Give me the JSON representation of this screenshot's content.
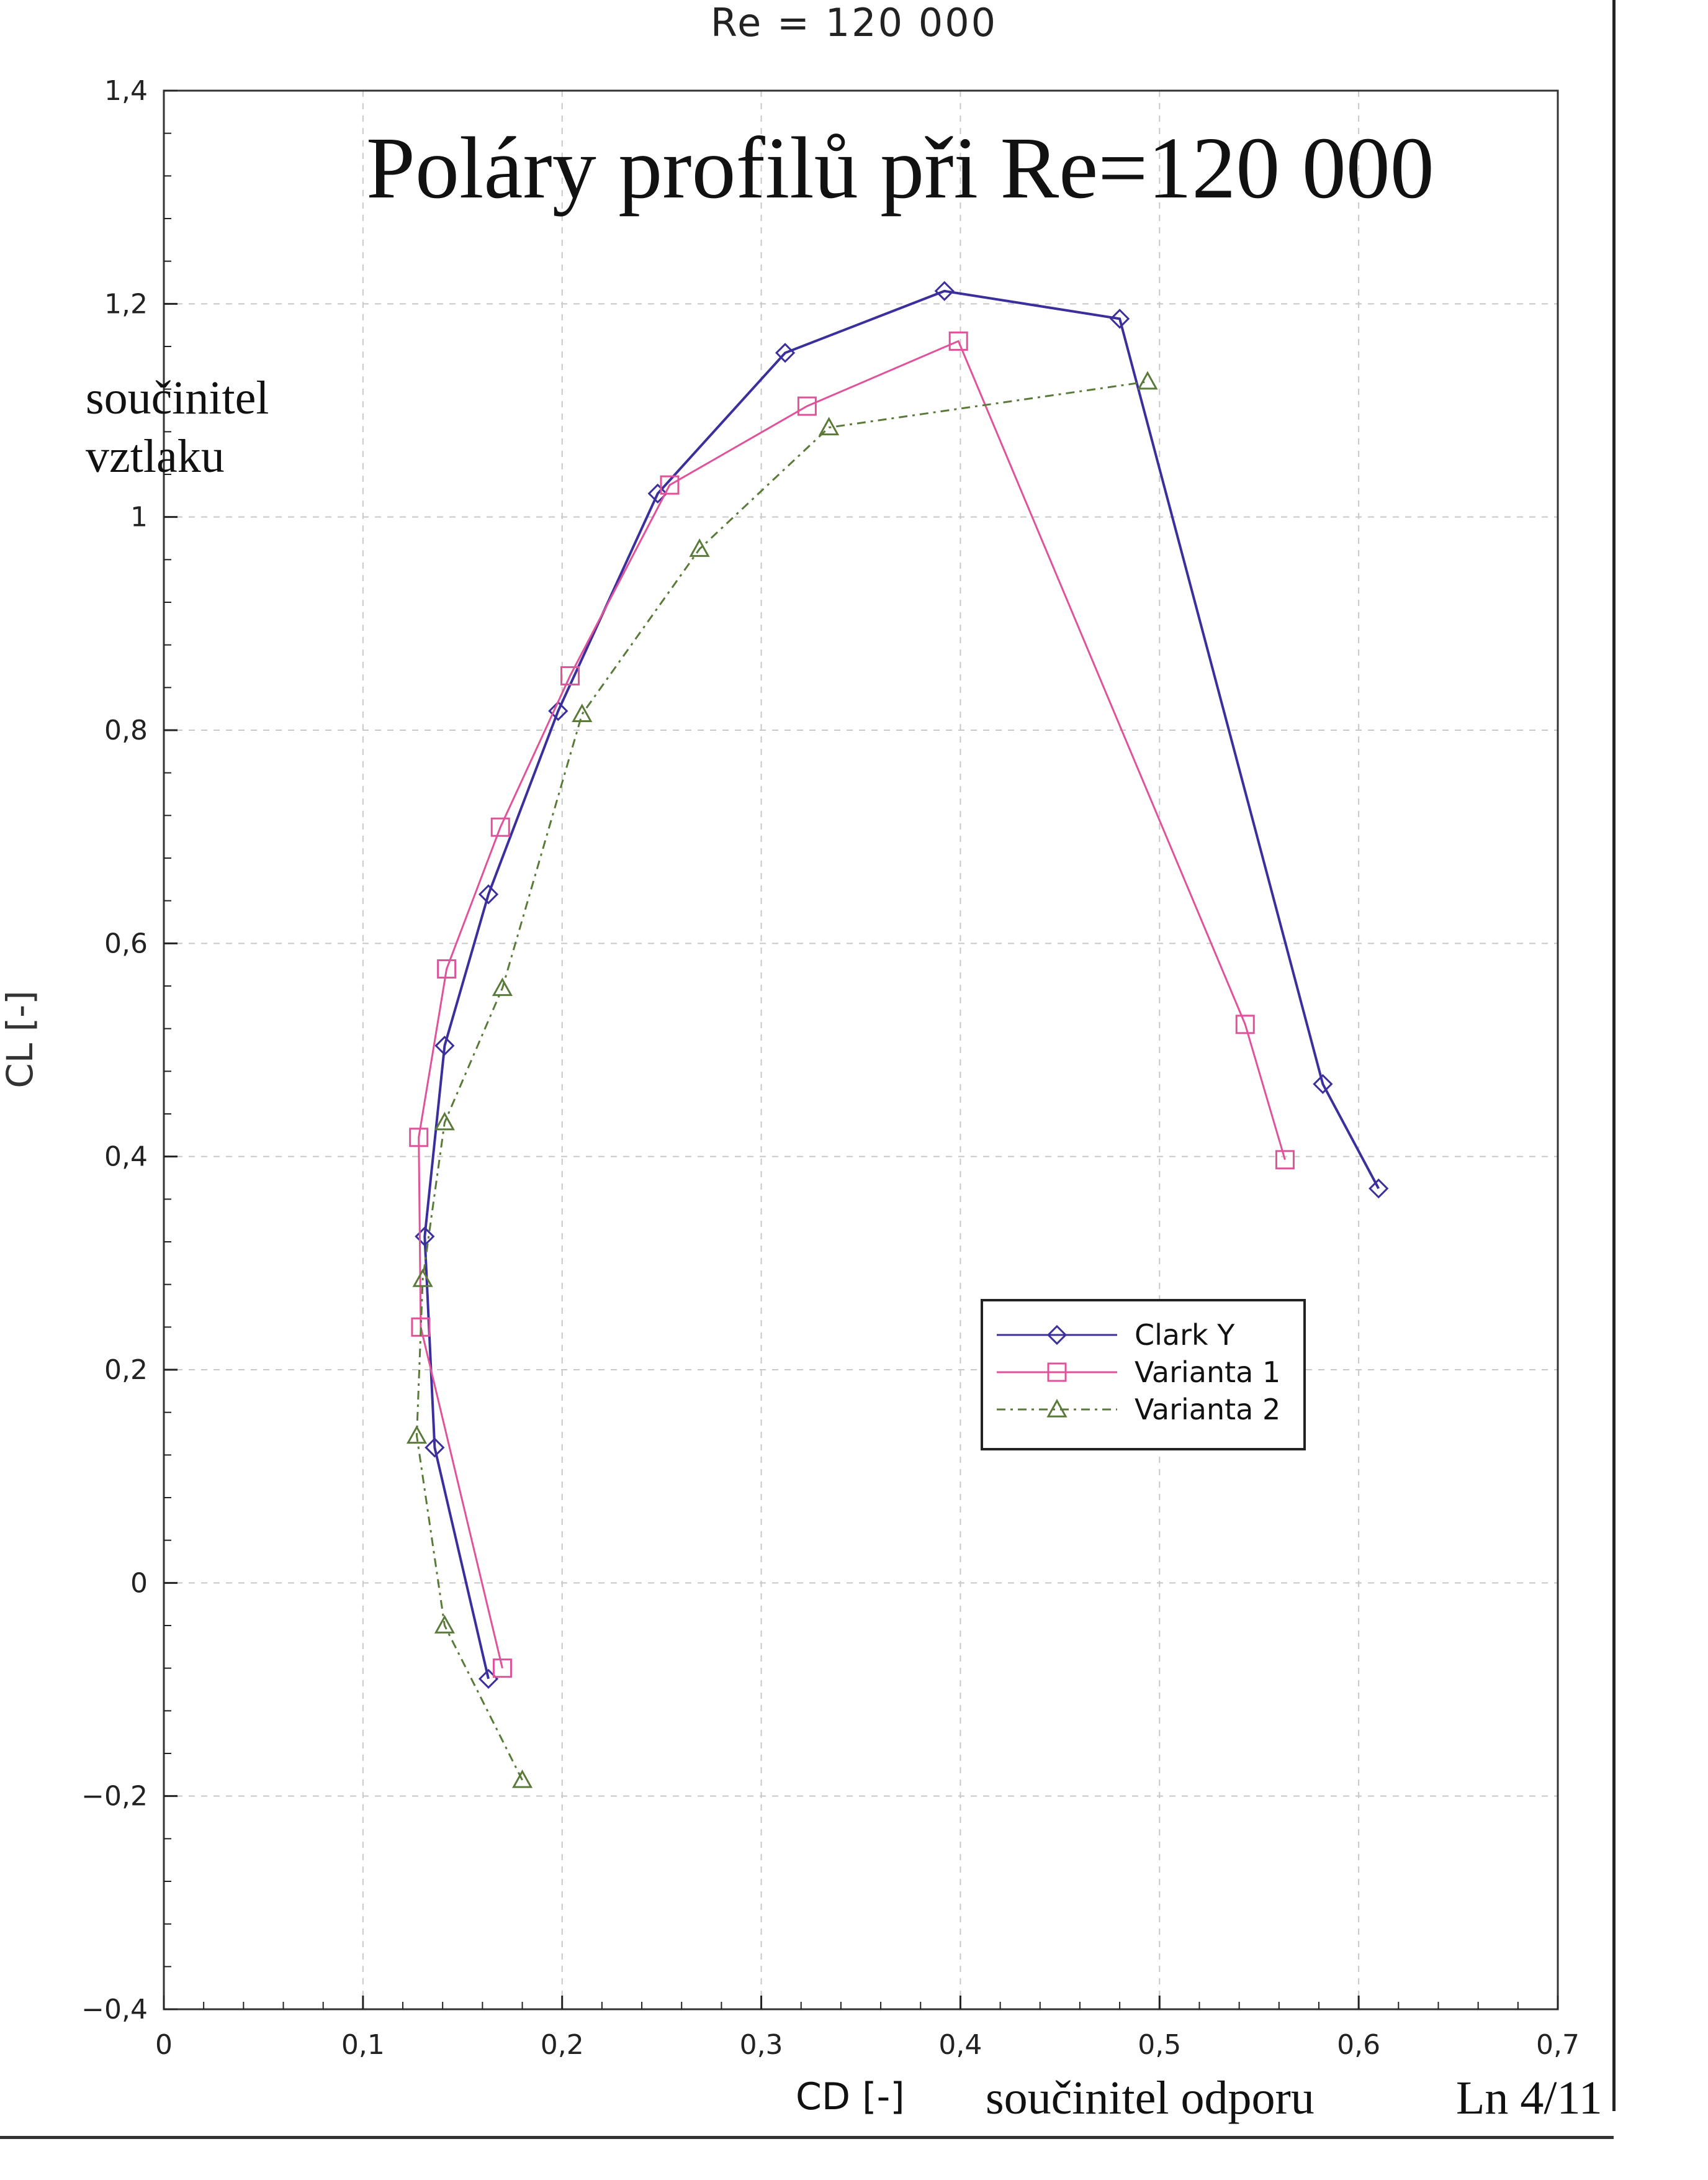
{
  "header": {
    "top_title": "Re = 120 000",
    "big_title": "Poláry profilů při Re=120 000"
  },
  "annotations": {
    "ylabel_line1": "součinitel",
    "ylabel_line2": "vztlaku",
    "xlabel_note": "součinitel odporu",
    "page_number": "Ln 4/11"
  },
  "chart_data": {
    "type": "line",
    "title": "Re = 120 000",
    "xlabel": "CD [-]",
    "ylabel": "CL [-]",
    "xlim": [
      0,
      0.7
    ],
    "ylim": [
      -0.4,
      1.4
    ],
    "xticks": [
      0,
      0.1,
      0.2,
      0.3,
      0.4,
      0.5,
      0.6,
      0.7
    ],
    "xtick_labels": [
      "0",
      "0,1",
      "0,2",
      "0,3",
      "0,4",
      "0,5",
      "0,6",
      "0,7"
    ],
    "yticks": [
      -0.4,
      -0.2,
      0,
      0.2,
      0.4,
      0.6,
      0.8,
      1,
      1.2,
      1.4
    ],
    "ytick_labels": [
      "−0,4",
      "−0,2",
      "0",
      "0,2",
      "0,4",
      "0,6",
      "0,8",
      "1",
      "1,2",
      "1,4"
    ],
    "grid": true,
    "legend_position": "right-middle",
    "series": [
      {
        "name": "Clark Y",
        "color": "#3b2f9e",
        "marker": "diamond",
        "x": [
          0.163,
          0.136,
          0.131,
          0.141,
          0.163,
          0.198,
          0.248,
          0.312,
          0.392,
          0.48,
          0.582,
          0.61
        ],
        "y": [
          -0.09,
          0.127,
          0.325,
          0.504,
          0.646,
          0.818,
          1.022,
          1.154,
          1.212,
          1.186,
          0.468,
          0.37
        ]
      },
      {
        "name": "Varianta 1",
        "color": "#e0529a",
        "marker": "square",
        "x": [
          0.17,
          0.129,
          0.128,
          0.142,
          0.169,
          0.204,
          0.254,
          0.323,
          0.399,
          0.543,
          0.563
        ],
        "y": [
          -0.08,
          0.24,
          0.418,
          0.576,
          0.709,
          0.851,
          1.03,
          1.104,
          1.165,
          0.524,
          0.397
        ]
      },
      {
        "name": "Varianta 2",
        "color": "#5a7a3a",
        "marker": "triangle",
        "x": [
          0.18,
          0.141,
          0.127,
          0.13,
          0.141,
          0.17,
          0.21,
          0.269,
          0.334,
          0.494
        ],
        "y": [
          -0.185,
          -0.04,
          0.138,
          0.285,
          0.432,
          0.558,
          0.815,
          0.97,
          1.084,
          1.127
        ]
      }
    ]
  }
}
